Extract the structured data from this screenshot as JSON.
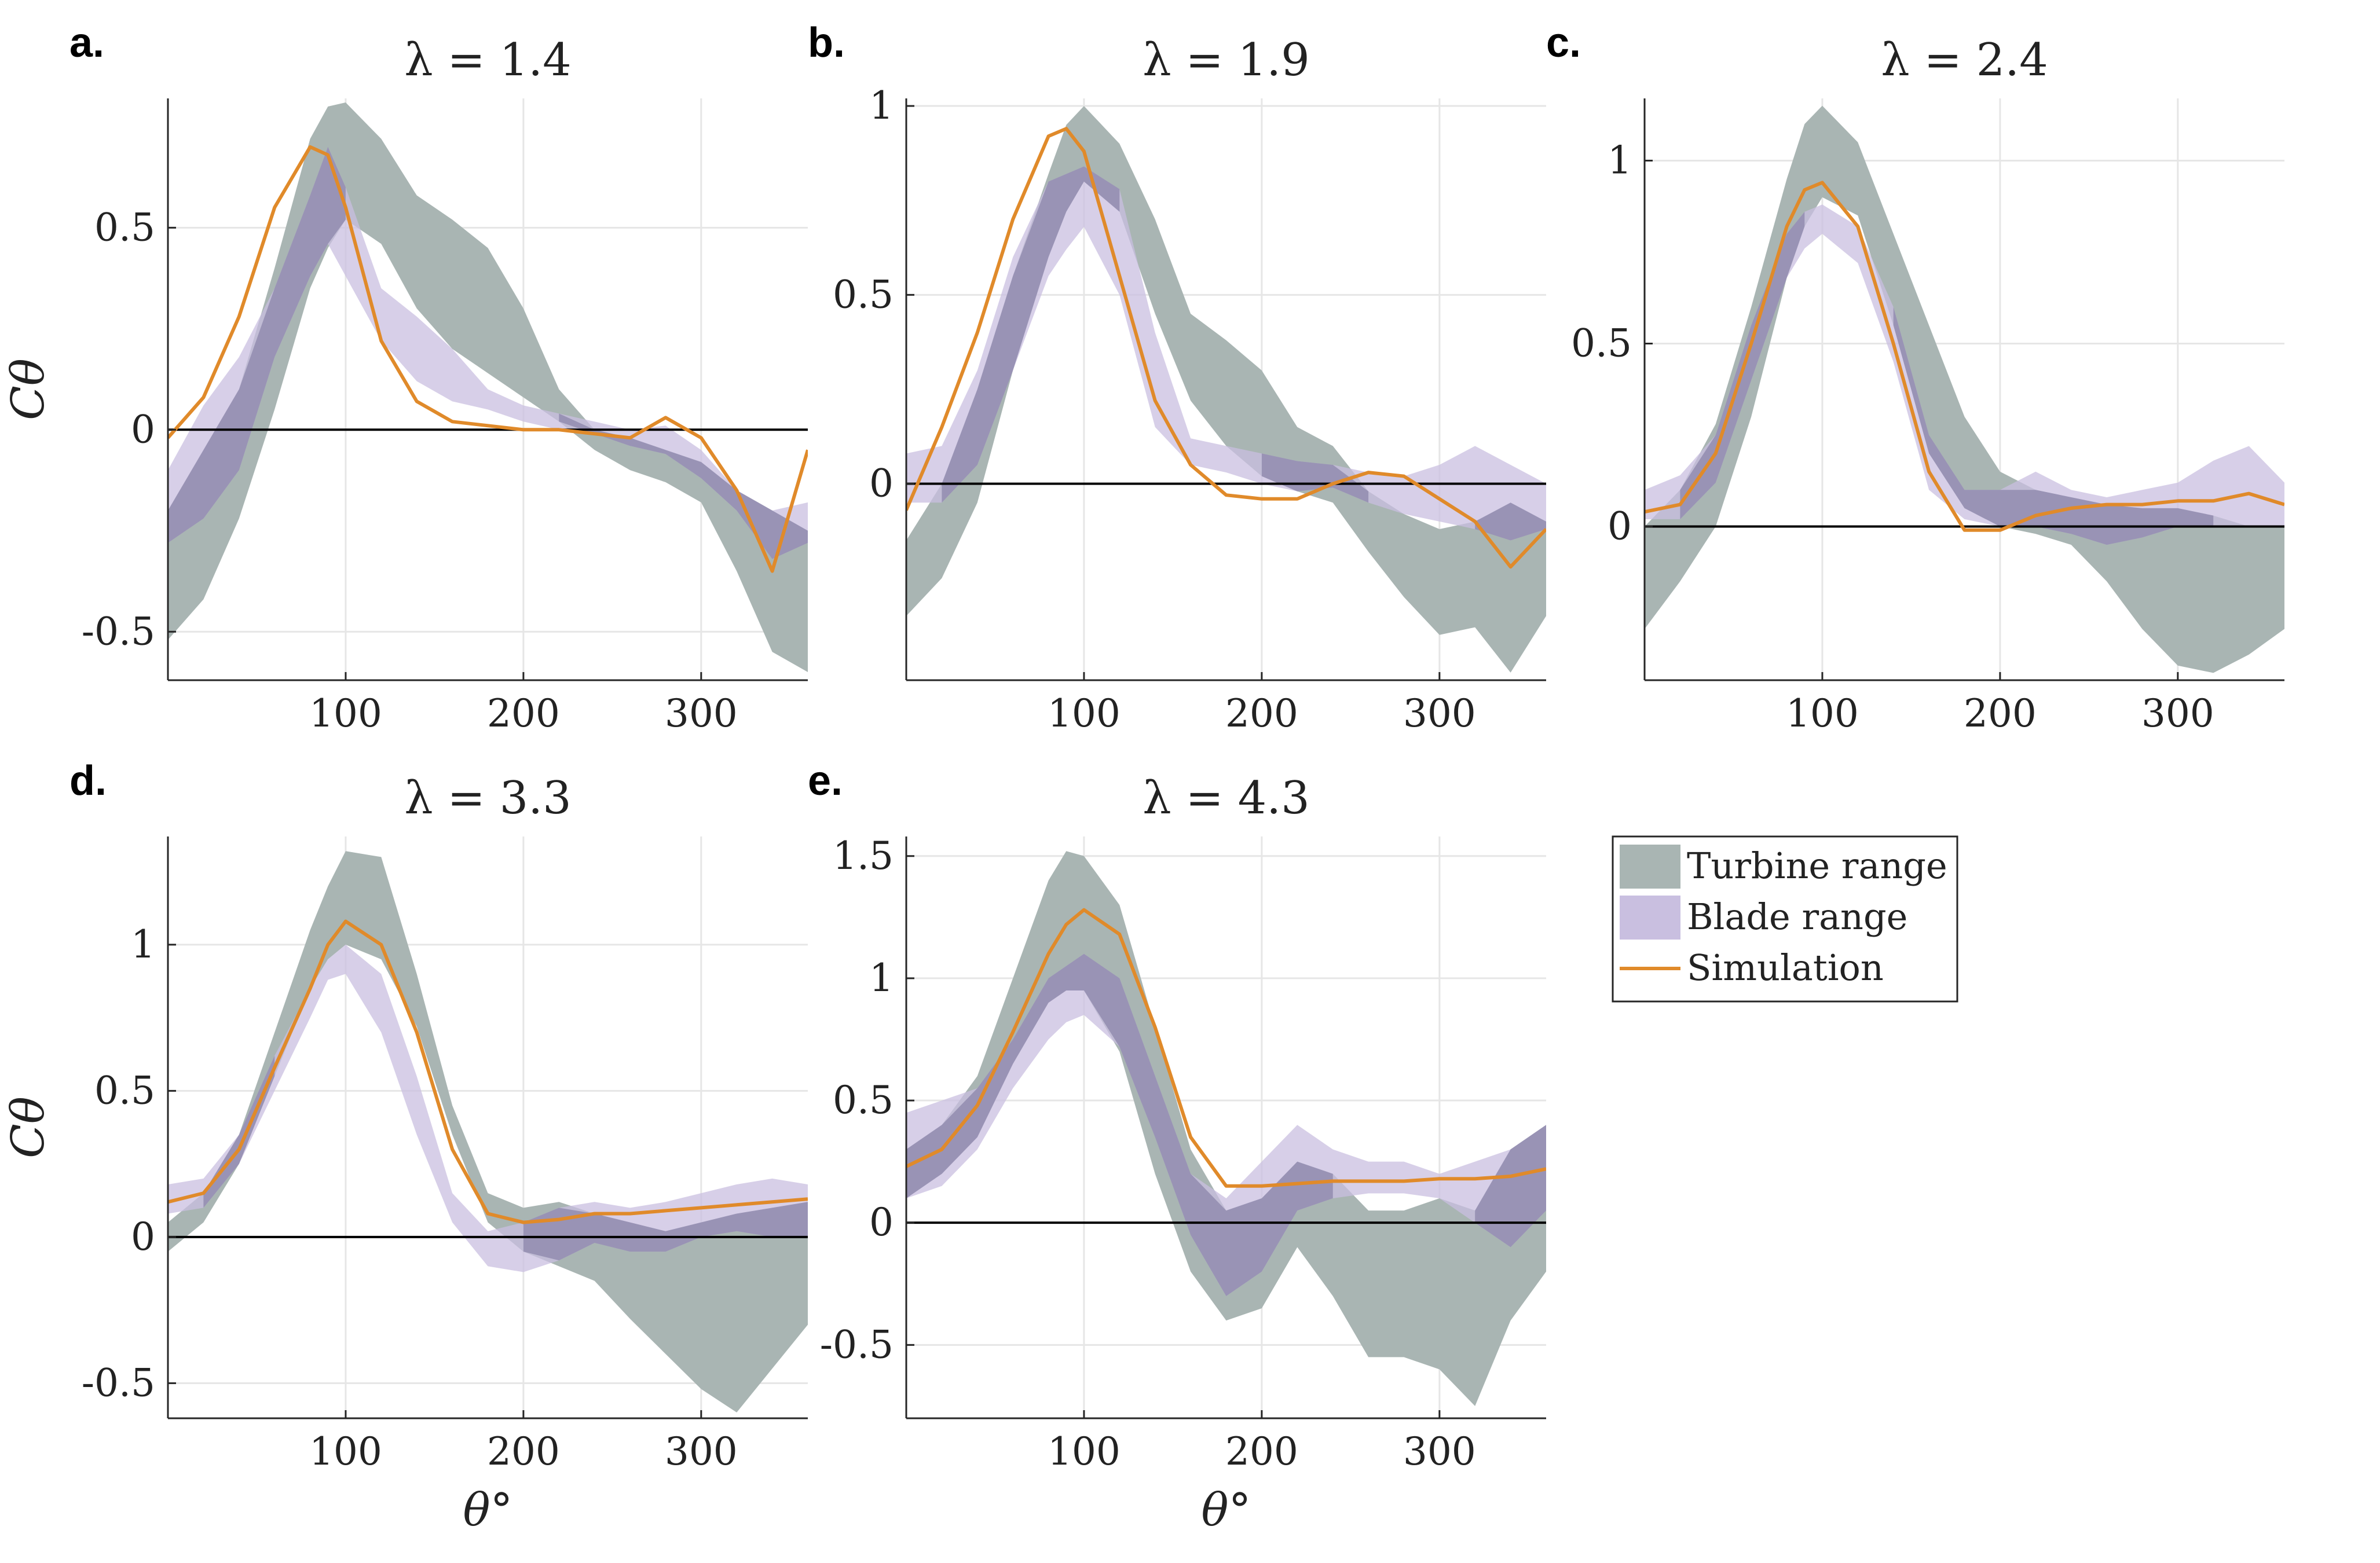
{
  "legend": {
    "placement": "right-of-panel-e",
    "entries": [
      {
        "label": "Turbine range",
        "color": "#a9b5b3",
        "kind": "band"
      },
      {
        "label": "Blade range",
        "color": "#c9bfe0",
        "kind": "band"
      },
      {
        "label": "Simulation",
        "color": "#e08a2a",
        "kind": "line"
      }
    ]
  },
  "colors": {
    "overlap": "#8f88ad",
    "zero_line": "#000000",
    "grid": "#e6e6e6"
  },
  "xlabel": "θ°",
  "ylabel": "Cθ",
  "chart_data": [
    {
      "type": "area",
      "panel_label": "a.",
      "title": "λ = 1.4",
      "xlim": [
        0,
        360
      ],
      "ylim": [
        -0.62,
        0.82
      ],
      "xticks": [
        100,
        200,
        300
      ],
      "yticks": [
        -0.5,
        0,
        0.5
      ],
      "ytick_labels": [
        "-0.5",
        "0",
        "0.5"
      ],
      "show_xlabel": false,
      "show_ylabel": true,
      "grid": true,
      "x": [
        0,
        20,
        40,
        60,
        80,
        90,
        100,
        120,
        140,
        160,
        180,
        200,
        220,
        240,
        260,
        280,
        300,
        320,
        340,
        360
      ],
      "series": [
        {
          "name": "Turbine range",
          "lower": [
            -0.52,
            -0.42,
            -0.22,
            0.05,
            0.35,
            0.45,
            0.52,
            0.46,
            0.3,
            0.2,
            0.14,
            0.08,
            0.02,
            -0.05,
            -0.1,
            -0.13,
            -0.18,
            -0.35,
            -0.55,
            -0.6
          ],
          "upper": [
            -0.2,
            -0.05,
            0.1,
            0.4,
            0.72,
            0.8,
            0.81,
            0.72,
            0.58,
            0.52,
            0.45,
            0.3,
            0.1,
            0.0,
            -0.02,
            -0.05,
            -0.08,
            -0.15,
            -0.2,
            -0.25
          ]
        },
        {
          "name": "Blade range",
          "lower": [
            -0.28,
            -0.22,
            -0.1,
            0.18,
            0.38,
            0.46,
            0.38,
            0.22,
            0.12,
            0.07,
            0.05,
            0.02,
            0.0,
            -0.01,
            -0.04,
            -0.06,
            -0.12,
            -0.2,
            -0.32,
            -0.28
          ],
          "upper": [
            -0.1,
            0.06,
            0.18,
            0.35,
            0.58,
            0.7,
            0.6,
            0.35,
            0.28,
            0.2,
            0.1,
            0.06,
            0.04,
            0.02,
            0.0,
            0.01,
            -0.05,
            -0.15,
            -0.2,
            -0.18
          ]
        },
        {
          "name": "Simulation",
          "values": [
            -0.02,
            0.08,
            0.28,
            0.55,
            0.7,
            0.68,
            0.55,
            0.22,
            0.07,
            0.02,
            0.01,
            0.0,
            0.0,
            -0.01,
            -0.02,
            0.03,
            -0.02,
            -0.15,
            -0.35,
            -0.05
          ]
        }
      ]
    },
    {
      "type": "area",
      "panel_label": "b.",
      "title": "λ = 1.9",
      "xlim": [
        0,
        360
      ],
      "ylim": [
        -0.52,
        1.02
      ],
      "xticks": [
        100,
        200,
        300
      ],
      "yticks": [
        0,
        0.5,
        1
      ],
      "ytick_labels": [
        "0",
        "0.5",
        "1"
      ],
      "show_xlabel": false,
      "show_ylabel": false,
      "grid": true,
      "x": [
        0,
        20,
        40,
        60,
        80,
        90,
        100,
        120,
        140,
        160,
        180,
        200,
        220,
        240,
        260,
        280,
        300,
        320,
        340,
        360
      ],
      "series": [
        {
          "name": "Turbine range",
          "lower": [
            -0.35,
            -0.25,
            -0.05,
            0.3,
            0.6,
            0.72,
            0.8,
            0.72,
            0.45,
            0.22,
            0.1,
            0.02,
            -0.02,
            -0.05,
            -0.18,
            -0.3,
            -0.4,
            -0.38,
            -0.5,
            -0.35
          ],
          "upper": [
            -0.15,
            0.0,
            0.25,
            0.55,
            0.82,
            0.95,
            1.0,
            0.9,
            0.7,
            0.45,
            0.38,
            0.3,
            0.15,
            0.1,
            -0.02,
            -0.08,
            -0.12,
            -0.1,
            -0.05,
            -0.1
          ]
        },
        {
          "name": "Blade range",
          "lower": [
            -0.05,
            -0.05,
            0.05,
            0.3,
            0.55,
            0.62,
            0.68,
            0.5,
            0.15,
            0.05,
            0.03,
            0.0,
            -0.02,
            -0.01,
            -0.05,
            -0.08,
            -0.1,
            -0.12,
            -0.15,
            -0.12
          ],
          "upper": [
            0.08,
            0.1,
            0.3,
            0.6,
            0.8,
            0.82,
            0.84,
            0.78,
            0.4,
            0.12,
            0.1,
            0.08,
            0.06,
            0.05,
            0.03,
            0.02,
            0.05,
            0.1,
            0.05,
            0.0
          ]
        },
        {
          "name": "Simulation",
          "values": [
            -0.07,
            0.15,
            0.4,
            0.7,
            0.92,
            0.94,
            0.88,
            0.55,
            0.22,
            0.05,
            -0.03,
            -0.04,
            -0.04,
            0.0,
            0.03,
            0.02,
            -0.04,
            -0.1,
            -0.22,
            -0.12
          ]
        }
      ]
    },
    {
      "type": "area",
      "panel_label": "c.",
      "title": "λ = 2.4",
      "xlim": [
        0,
        360
      ],
      "ylim": [
        -0.42,
        1.17
      ],
      "xticks": [
        100,
        200,
        300
      ],
      "yticks": [
        0,
        0.5,
        1
      ],
      "ytick_labels": [
        "0",
        "0.5",
        "1"
      ],
      "show_xlabel": false,
      "show_ylabel": false,
      "grid": true,
      "x": [
        0,
        20,
        40,
        60,
        80,
        90,
        100,
        120,
        140,
        160,
        180,
        200,
        220,
        240,
        260,
        280,
        300,
        320,
        340,
        360
      ],
      "series": [
        {
          "name": "Turbine range",
          "lower": [
            -0.28,
            -0.15,
            0.0,
            0.3,
            0.68,
            0.82,
            0.9,
            0.85,
            0.55,
            0.2,
            0.05,
            0.0,
            -0.02,
            -0.05,
            -0.15,
            -0.28,
            -0.38,
            -0.4,
            -0.35,
            -0.28
          ],
          "upper": [
            0.0,
            0.1,
            0.28,
            0.6,
            0.95,
            1.1,
            1.15,
            1.05,
            0.8,
            0.55,
            0.3,
            0.15,
            0.1,
            0.08,
            0.06,
            0.05,
            0.05,
            0.03,
            0.0,
            0.0
          ]
        },
        {
          "name": "Blade range",
          "lower": [
            0.02,
            0.02,
            0.12,
            0.4,
            0.68,
            0.76,
            0.8,
            0.72,
            0.45,
            0.1,
            0.02,
            0.0,
            0.0,
            -0.02,
            -0.05,
            -0.03,
            0.0,
            0.0,
            0.0,
            0.0
          ],
          "upper": [
            0.1,
            0.14,
            0.25,
            0.55,
            0.8,
            0.86,
            0.88,
            0.82,
            0.6,
            0.25,
            0.1,
            0.1,
            0.15,
            0.1,
            0.08,
            0.1,
            0.12,
            0.18,
            0.22,
            0.12
          ]
        },
        {
          "name": "Simulation",
          "values": [
            0.04,
            0.06,
            0.2,
            0.5,
            0.82,
            0.92,
            0.94,
            0.82,
            0.5,
            0.15,
            -0.01,
            -0.01,
            0.03,
            0.05,
            0.06,
            0.06,
            0.07,
            0.07,
            0.09,
            0.06
          ]
        }
      ]
    },
    {
      "type": "area",
      "panel_label": "d.",
      "title": "λ = 3.3",
      "xlim": [
        0,
        360
      ],
      "ylim": [
        -0.62,
        1.37
      ],
      "xticks": [
        100,
        200,
        300
      ],
      "yticks": [
        -0.5,
        0,
        0.5,
        1
      ],
      "ytick_labels": [
        "-0.5",
        "0",
        "0.5",
        "1"
      ],
      "show_xlabel": true,
      "show_ylabel": true,
      "grid": true,
      "x": [
        0,
        20,
        40,
        60,
        80,
        90,
        100,
        120,
        140,
        160,
        180,
        200,
        220,
        240,
        260,
        280,
        300,
        320,
        340,
        360
      ],
      "series": [
        {
          "name": "Turbine range",
          "lower": [
            -0.05,
            0.05,
            0.25,
            0.55,
            0.85,
            0.95,
            1.0,
            0.95,
            0.72,
            0.35,
            0.05,
            -0.05,
            -0.1,
            -0.15,
            -0.28,
            -0.4,
            -0.52,
            -0.6,
            -0.45,
            -0.3
          ],
          "upper": [
            0.05,
            0.15,
            0.35,
            0.7,
            1.05,
            1.2,
            1.32,
            1.3,
            0.9,
            0.45,
            0.15,
            0.1,
            0.12,
            0.08,
            0.05,
            0.02,
            0.05,
            0.08,
            0.1,
            0.12
          ]
        },
        {
          "name": "Blade range",
          "lower": [
            0.08,
            0.1,
            0.25,
            0.5,
            0.75,
            0.88,
            0.9,
            0.7,
            0.35,
            0.05,
            -0.1,
            -0.12,
            -0.08,
            -0.02,
            -0.05,
            -0.05,
            0.0,
            0.02,
            0.0,
            0.0
          ],
          "upper": [
            0.18,
            0.2,
            0.35,
            0.62,
            0.85,
            0.95,
            1.0,
            0.9,
            0.55,
            0.15,
            0.02,
            0.05,
            0.1,
            0.12,
            0.1,
            0.12,
            0.15,
            0.18,
            0.2,
            0.18
          ]
        },
        {
          "name": "Simulation",
          "values": [
            0.12,
            0.15,
            0.3,
            0.58,
            0.85,
            1.0,
            1.08,
            1.0,
            0.7,
            0.3,
            0.08,
            0.05,
            0.06,
            0.08,
            0.08,
            0.09,
            0.1,
            0.11,
            0.12,
            0.13
          ]
        }
      ]
    },
    {
      "type": "area",
      "panel_label": "e.",
      "title": "λ = 4.3",
      "xlim": [
        0,
        360
      ],
      "ylim": [
        -0.8,
        1.58
      ],
      "xticks": [
        100,
        200,
        300
      ],
      "yticks": [
        -0.5,
        0,
        0.5,
        1,
        1.5
      ],
      "ytick_labels": [
        "-0.5",
        "0",
        "0.5",
        "1",
        "1.5"
      ],
      "show_xlabel": true,
      "show_ylabel": false,
      "grid": true,
      "x": [
        0,
        20,
        40,
        60,
        80,
        90,
        100,
        120,
        140,
        160,
        180,
        200,
        220,
        240,
        260,
        280,
        300,
        320,
        340,
        360
      ],
      "series": [
        {
          "name": "Turbine range",
          "lower": [
            0.1,
            0.2,
            0.35,
            0.65,
            0.9,
            0.95,
            0.95,
            0.7,
            0.2,
            -0.2,
            -0.4,
            -0.35,
            -0.1,
            -0.3,
            -0.55,
            -0.55,
            -0.6,
            -0.75,
            -0.4,
            -0.2
          ],
          "upper": [
            0.3,
            0.4,
            0.6,
            1.0,
            1.4,
            1.52,
            1.5,
            1.3,
            0.8,
            0.3,
            0.05,
            0.1,
            0.25,
            0.2,
            0.05,
            0.05,
            0.1,
            0.05,
            0.3,
            0.4
          ]
        },
        {
          "name": "Blade range",
          "lower": [
            0.1,
            0.15,
            0.3,
            0.55,
            0.75,
            0.82,
            0.85,
            0.72,
            0.35,
            -0.05,
            -0.3,
            -0.2,
            0.05,
            0.1,
            0.12,
            0.12,
            0.1,
            0.0,
            -0.1,
            0.05
          ],
          "upper": [
            0.45,
            0.5,
            0.55,
            0.75,
            1.0,
            1.05,
            1.1,
            1.0,
            0.6,
            0.2,
            0.1,
            0.25,
            0.4,
            0.3,
            0.25,
            0.25,
            0.2,
            0.25,
            0.3,
            0.4
          ]
        },
        {
          "name": "Simulation",
          "values": [
            0.23,
            0.3,
            0.48,
            0.78,
            1.1,
            1.22,
            1.28,
            1.18,
            0.8,
            0.35,
            0.15,
            0.15,
            0.16,
            0.17,
            0.17,
            0.17,
            0.18,
            0.18,
            0.19,
            0.22
          ]
        }
      ]
    }
  ]
}
